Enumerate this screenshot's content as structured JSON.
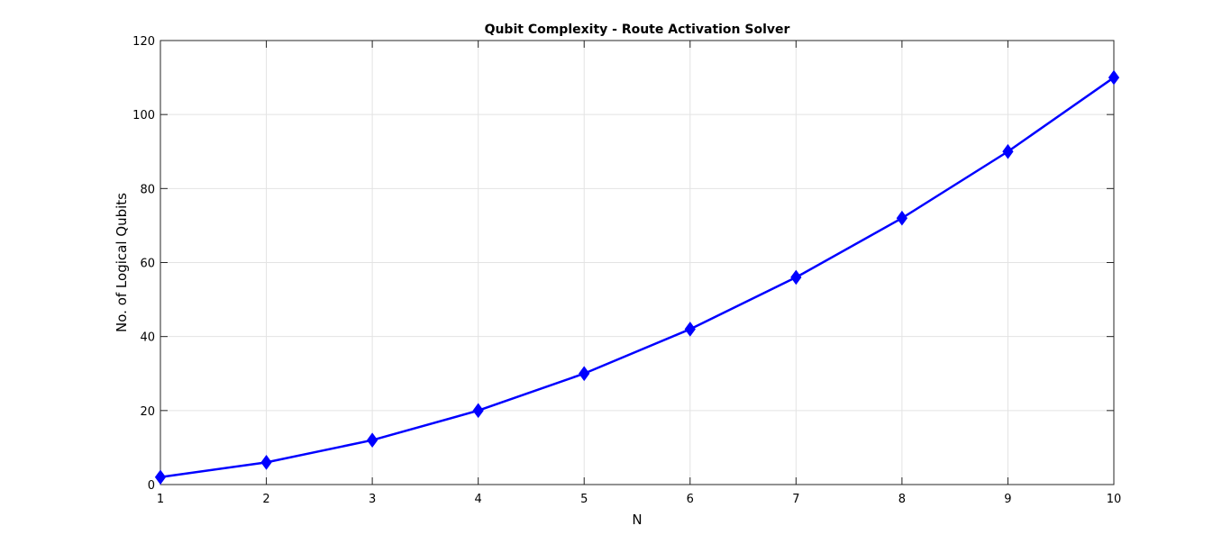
{
  "chart_data": {
    "type": "line",
    "title": "Qubit Complexity - Route Activation Solver",
    "xlabel": "N",
    "ylabel": "No. of Logical Qubits",
    "x": [
      1,
      2,
      3,
      4,
      5,
      6,
      7,
      8,
      9,
      10
    ],
    "series": [
      {
        "values": [
          2,
          6,
          12,
          20,
          30,
          42,
          56,
          72,
          90,
          110
        ],
        "color": "#0000ff",
        "marker": "diamond"
      }
    ],
    "xlim": [
      1,
      10
    ],
    "ylim": [
      0,
      120
    ],
    "xticks": [
      "1",
      "2",
      "3",
      "4",
      "5",
      "6",
      "7",
      "8",
      "9",
      "10"
    ],
    "yticks": [
      "0",
      "20",
      "40",
      "60",
      "80",
      "100",
      "120"
    ],
    "grid": true,
    "legend": "none"
  }
}
